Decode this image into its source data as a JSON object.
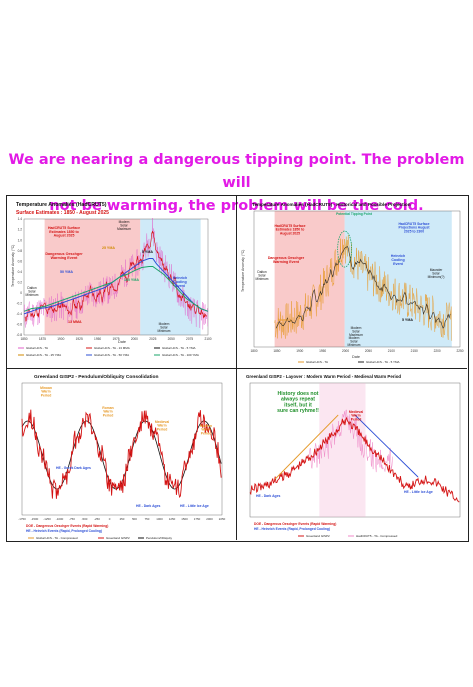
{
  "headline": [
    "We are nearing a dangerous tipping point. The problem will",
    "not be warming, the problem will be the cold."
  ],
  "colors": {
    "headline": "#e21ae6",
    "warm_zone": "#f7b8b8",
    "cool_zone": "#bfe3f5",
    "data_red": "#d41414",
    "data_orange": "#e69a2a",
    "trend_blue": "#2d4fd6",
    "trend_black": "#111111",
    "trend_green": "#1aa56a",
    "pink_zone": "#f4b7d8",
    "annotation_green": "#1f8f2a"
  },
  "chart_data": [
    {
      "type": "line",
      "title": "Temperature Anomalies (HadCRUT5)",
      "subtitle": "Surface Estimates : 1850 - August 2025",
      "ylabel": "Temperature Anomaly (°C)",
      "xlabel": "Date",
      "ylim": [
        -0.8,
        1.4
      ],
      "yticks": [
        "1.4",
        "1.2",
        "1.0",
        "0.8",
        "0.6",
        "0.4",
        "0.2",
        "0",
        "-0.2",
        "-0.4",
        "-0.6",
        "-0.8"
      ],
      "xticks": [
        "1850",
        "1875",
        "1900",
        "1925",
        "1950",
        "1975",
        "2000",
        "2025",
        "2050",
        "2075",
        "2100"
      ],
      "annotations": [
        "HadCRUT5 Surface Estimates 1850 to August 2025",
        "Dangerous Oeschger Warming Event",
        "Dalton Solar Minimum",
        "Modern Solar Maximum",
        "Heinrich Cooling Event",
        "Modern Solar Minimum",
        "25 YMA",
        "5 YMA",
        "50 YMA",
        "100 YMA",
        "13 MMA"
      ],
      "legend": [
        "Global HCS - TA",
        "Global HCS - TA - 13 MMA",
        "Global HCS - TA - 5 YMA",
        "Global HCS - TA - 25 YMA",
        "Global HCS - TA - 50 YMA",
        "Global HCS - TA - 100 YMA"
      ],
      "x": [
        1850,
        1860,
        1870,
        1880,
        1890,
        1900,
        1910,
        1920,
        1930,
        1940,
        1950,
        1960,
        1970,
        1980,
        1990,
        2000,
        2010,
        2020,
        2025,
        2030,
        2040,
        2050,
        2060,
        2070,
        2080,
        2090,
        2100
      ],
      "series": [
        {
          "name": "Global HCS - TA",
          "values": [
            -0.45,
            -0.4,
            -0.35,
            -0.3,
            -0.3,
            -0.25,
            -0.35,
            -0.25,
            -0.15,
            0.0,
            -0.05,
            0.05,
            0.05,
            0.25,
            0.4,
            0.5,
            0.65,
            1.0,
            1.2,
            0.8,
            0.5,
            0.3,
            0.0,
            -0.2,
            -0.35,
            -0.45,
            -0.4
          ]
        },
        {
          "name": "Global HCS - TA - 50 YMA",
          "values": [
            -0.4,
            -0.35,
            -0.3,
            -0.28,
            -0.25,
            -0.2,
            -0.15,
            -0.1,
            -0.05,
            0.0,
            0.05,
            0.1,
            0.2,
            0.3,
            0.4,
            0.5,
            0.6,
            0.65,
            0.65,
            0.55,
            0.4,
            0.25,
            0.1,
            -0.05,
            -0.2,
            -0.3,
            -0.35
          ]
        },
        {
          "name": "Global HCS - TA - 100 YMA",
          "values": [
            -0.35,
            -0.3,
            -0.28,
            -0.25,
            -0.2,
            -0.15,
            -0.1,
            -0.05,
            0.0,
            0.05,
            0.1,
            0.15,
            0.2,
            0.3,
            0.35,
            0.42,
            0.48,
            0.5,
            0.5,
            0.45,
            0.35,
            0.2,
            0.05,
            -0.1,
            -0.2,
            -0.3,
            -0.35
          ]
        }
      ]
    },
    {
      "type": "line",
      "title": "Temperature Anomalies (HadCRUT5) - Historical and Possible Projection",
      "ylabel": "Temperature Anomaly (°C)",
      "xlabel": "Date",
      "xticks": [
        "1800",
        "1850",
        "1900",
        "1950",
        "2000",
        "2050",
        "2100",
        "2150",
        "2200",
        "2250"
      ],
      "annotations": [
        "HadCRUT5 Surface Estimates 1850 to August 2025",
        "Potential Tipping Point",
        "HadCRUT5 Surface Projections August 2025 to 2300",
        "Dangerous Oeschger Warming Event",
        "Heinrich Cooling Event",
        "Dalton Solar Minimum",
        "Modern Solar Maximum",
        "Modern Solar Minimum",
        "Maunder Solar Minimum(?)",
        "Monthly",
        "5 YMA"
      ],
      "legend": [
        "Global HCS - TA",
        "Global HCS - TA - 5 YMA"
      ]
    },
    {
      "type": "line",
      "title": "Greenland GISP2 - Pendulum/Obliquity Consolidation",
      "xticks": [
        "-1750",
        "-1500",
        "-1250",
        "-1000",
        "-750",
        "-500",
        "-250",
        "0",
        "250",
        "500",
        "750",
        "1000",
        "1250",
        "1500",
        "1750",
        "2000",
        "2250"
      ],
      "annotations": [
        "Minoan Warm Period",
        "Roman Warm Period",
        "Medieval Warm Period",
        "Modern Warm Period",
        "Greek Dark Ages",
        "Dark Ages",
        "Little Ice Age",
        "DOE - Dangerous Oeschger Events (Rapid Warming)",
        "HE - Heinrich Events (Rapid, Prolonged Cooling)"
      ],
      "legend": [
        "Greenland GISP2",
        "Pendulum/Obliquity",
        "Global HCS - TA - Compressed"
      ]
    },
    {
      "type": "line",
      "title": "Greenland GISP2 - Layover : Modern Warm Period - Medieval Warm Period",
      "annotations": [
        "History does not always repeat itself, but it sure can ryhme!!",
        "Medieval Warm Period",
        "Little Ice Age",
        "Dark Ages",
        "DOE - Dangerous Oeschger Events (Rapid Warming)",
        "HE - Heinrich Events (Rapid, Prolonged Cooling)"
      ],
      "legend": [
        "Greenland GISP2",
        "HadCRUT5 - TA - Compressed"
      ]
    }
  ]
}
